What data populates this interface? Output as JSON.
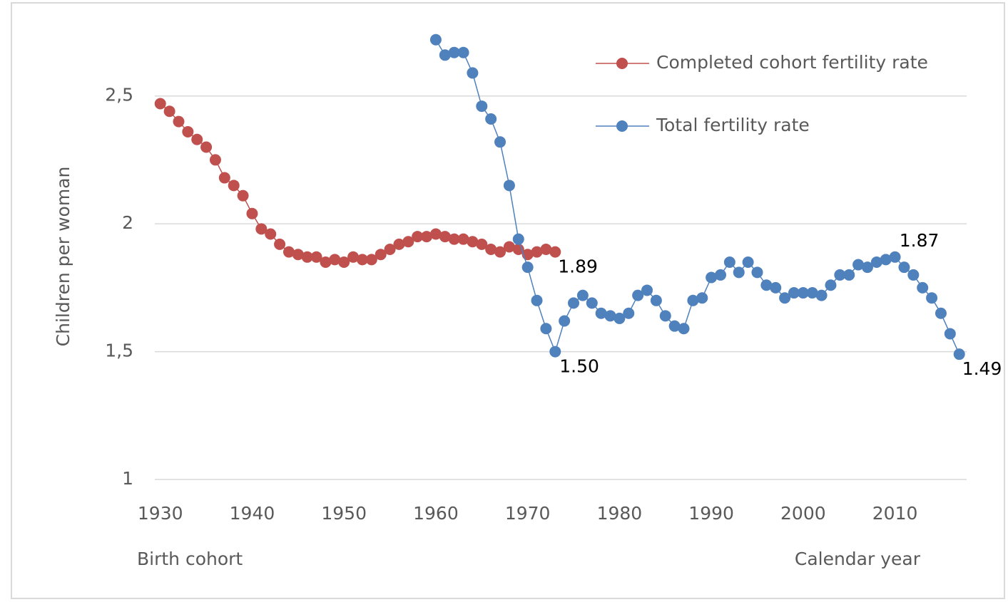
{
  "chart_data": {
    "type": "line",
    "ylabel": "Children per woman",
    "xlabel_left": "Birth cohort",
    "xlabel_right": "Calendar year",
    "xlim": [
      1929.4,
      2017.8
    ],
    "xticks": [
      1930,
      1940,
      1950,
      1960,
      1970,
      1980,
      1990,
      2000,
      2010
    ],
    "ylim": [
      1,
      2.75
    ],
    "yticks": [
      1,
      {
        "value": 1.5,
        "label": "1,5"
      },
      2,
      {
        "value": 2.5,
        "label": "2,5"
      }
    ],
    "grid": true,
    "legend": "top-right",
    "series": [
      {
        "name": "Completed cohort fertility rate",
        "color": "#c0504d",
        "x": [
          1930,
          1931,
          1932,
          1933,
          1934,
          1935,
          1936,
          1937,
          1938,
          1939,
          1940,
          1941,
          1942,
          1943,
          1944,
          1945,
          1946,
          1947,
          1948,
          1949,
          1950,
          1951,
          1952,
          1953,
          1954,
          1955,
          1956,
          1957,
          1958,
          1959,
          1960,
          1961,
          1962,
          1963,
          1964,
          1965,
          1966,
          1967,
          1968,
          1969,
          1970,
          1971,
          1972,
          1973
        ],
        "values": [
          2.47,
          2.44,
          2.4,
          2.36,
          2.33,
          2.3,
          2.25,
          2.18,
          2.15,
          2.11,
          2.04,
          1.98,
          1.96,
          1.92,
          1.89,
          1.88,
          1.87,
          1.87,
          1.85,
          1.86,
          1.85,
          1.87,
          1.86,
          1.86,
          1.88,
          1.9,
          1.92,
          1.93,
          1.95,
          1.95,
          1.96,
          1.95,
          1.94,
          1.94,
          1.93,
          1.92,
          1.9,
          1.89,
          1.91,
          1.9,
          1.88,
          1.89,
          1.9,
          1.89
        ],
        "value_labels": [
          null,
          null,
          null,
          null,
          null,
          null,
          null,
          null,
          null,
          null,
          null,
          null,
          null,
          null,
          null,
          null,
          null,
          null,
          null,
          null,
          null,
          null,
          null,
          null,
          null,
          null,
          null,
          null,
          null,
          null,
          null,
          null,
          null,
          null,
          null,
          null,
          null,
          null,
          null,
          null,
          null,
          null,
          null,
          "1.89"
        ]
      },
      {
        "name": "Total fertility rate",
        "color": "#4f81bd",
        "x": [
          1960,
          1961,
          1962,
          1963,
          1964,
          1965,
          1966,
          1967,
          1968,
          1969,
          1970,
          1971,
          1972,
          1973,
          1974,
          1975,
          1976,
          1977,
          1978,
          1979,
          1980,
          1981,
          1982,
          1983,
          1984,
          1985,
          1986,
          1987,
          1988,
          1989,
          1990,
          1991,
          1992,
          1993,
          1994,
          1995,
          1996,
          1997,
          1998,
          1999,
          2000,
          2001,
          2002,
          2003,
          2004,
          2005,
          2006,
          2007,
          2008,
          2009,
          2010,
          2011,
          2012,
          2013,
          2014,
          2015,
          2016,
          2017
        ],
        "values": [
          2.72,
          2.66,
          2.67,
          2.67,
          2.59,
          2.46,
          2.41,
          2.32,
          2.15,
          1.94,
          1.83,
          1.7,
          1.59,
          1.5,
          1.62,
          1.69,
          1.72,
          1.69,
          1.65,
          1.64,
          1.63,
          1.65,
          1.72,
          1.74,
          1.7,
          1.64,
          1.6,
          1.59,
          1.7,
          1.71,
          1.79,
          1.8,
          1.85,
          1.81,
          1.85,
          1.81,
          1.76,
          1.75,
          1.71,
          1.73,
          1.73,
          1.73,
          1.72,
          1.76,
          1.8,
          1.8,
          1.84,
          1.83,
          1.85,
          1.86,
          1.87,
          1.83,
          1.8,
          1.75,
          1.71,
          1.65,
          1.57,
          1.49
        ],
        "value_labels": [
          null,
          null,
          null,
          null,
          null,
          null,
          null,
          null,
          null,
          null,
          null,
          null,
          null,
          "1.50",
          null,
          null,
          null,
          null,
          null,
          null,
          null,
          null,
          null,
          null,
          null,
          null,
          null,
          null,
          null,
          null,
          null,
          null,
          null,
          null,
          null,
          null,
          null,
          null,
          null,
          null,
          null,
          null,
          null,
          null,
          null,
          null,
          null,
          null,
          null,
          null,
          "1.87",
          null,
          null,
          null,
          null,
          null,
          null,
          "1.49"
        ]
      }
    ]
  }
}
